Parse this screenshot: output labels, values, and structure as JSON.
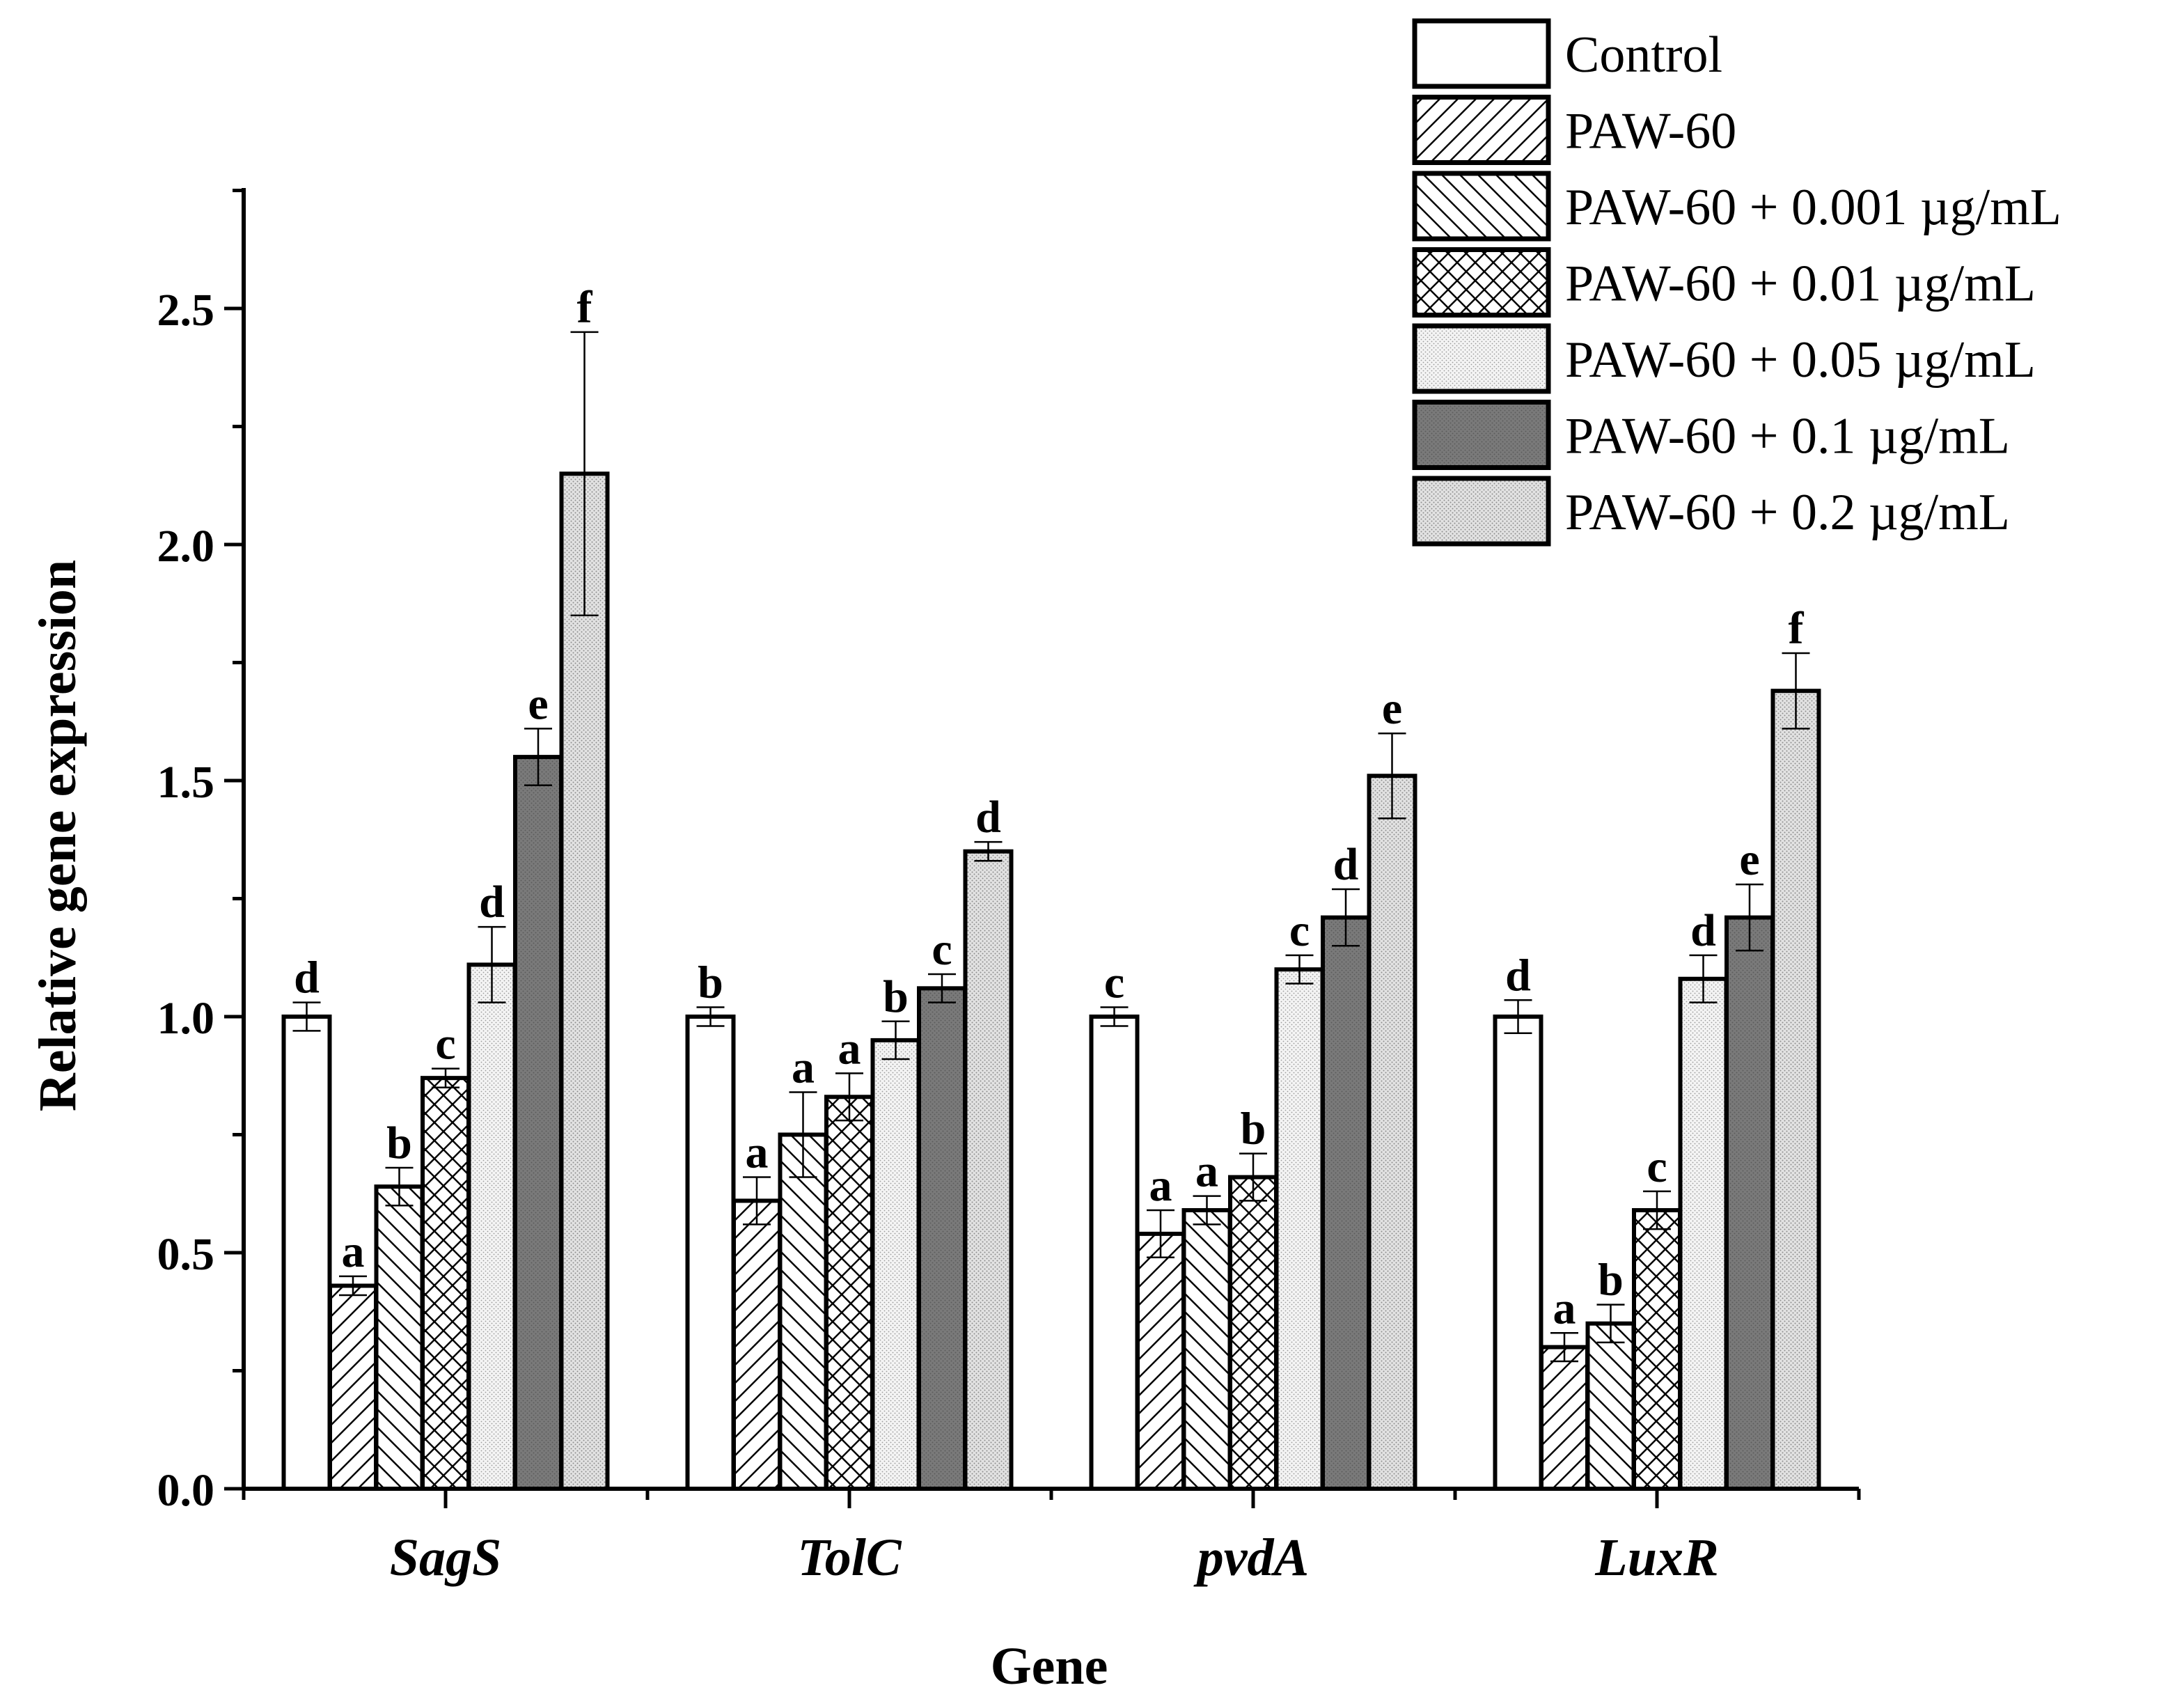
{
  "chart_data": {
    "type": "bar",
    "title": "",
    "xlabel": "Gene",
    "ylabel": "Relative gene expression",
    "ylim": [
      0,
      2.75
    ],
    "yticks": [
      0.0,
      0.5,
      1.0,
      1.5,
      2.0,
      2.5
    ],
    "ytick_labels": [
      "0.0",
      "0.5",
      "1.0",
      "1.5",
      "2.0",
      "2.5"
    ],
    "categories": [
      "SagS",
      "TolC",
      "pvdA",
      "LuxR"
    ],
    "grid": false,
    "legend_position": "top-right",
    "series": [
      {
        "name": "Control",
        "pattern": "none",
        "values": [
          1.0,
          1.0,
          1.0,
          1.0
        ],
        "errors": [
          0.03,
          0.02,
          0.02,
          0.035
        ],
        "letters": [
          "d",
          "b",
          "c",
          "d"
        ]
      },
      {
        "name": "PAW-60",
        "pattern": "diag-forward",
        "values": [
          0.43,
          0.61,
          0.54,
          0.3
        ],
        "errors": [
          0.02,
          0.05,
          0.05,
          0.03
        ],
        "letters": [
          "a",
          "a",
          "a",
          "a"
        ]
      },
      {
        "name": "PAW-60 + 0.001 µg/mL",
        "pattern": "diag-back",
        "values": [
          0.64,
          0.75,
          0.59,
          0.35
        ],
        "errors": [
          0.04,
          0.09,
          0.03,
          0.04
        ],
        "letters": [
          "b",
          "a",
          "a",
          "b"
        ]
      },
      {
        "name": "PAW-60 + 0.01 µg/mL",
        "pattern": "crosshatch",
        "values": [
          0.87,
          0.83,
          0.66,
          0.59
        ],
        "errors": [
          0.02,
          0.05,
          0.05,
          0.04
        ],
        "letters": [
          "c",
          "a",
          "b",
          "c"
        ]
      },
      {
        "name": "PAW-60 + 0.05 µg/mL",
        "pattern": "dots-light",
        "values": [
          1.11,
          0.95,
          1.1,
          1.08
        ],
        "errors": [
          0.08,
          0.04,
          0.03,
          0.05
        ],
        "letters": [
          "d",
          "b",
          "c",
          "d"
        ]
      },
      {
        "name": "PAW-60 + 0.1 µg/mL",
        "pattern": "dark",
        "values": [
          1.55,
          1.06,
          1.21,
          1.21
        ],
        "errors": [
          0.06,
          0.03,
          0.06,
          0.07
        ],
        "letters": [
          "e",
          "c",
          "d",
          "e"
        ]
      },
      {
        "name": "PAW-60 + 0.2 µg/mL",
        "pattern": "dots-medium",
        "values": [
          2.15,
          1.35,
          1.51,
          1.69
        ],
        "errors": [
          0.3,
          0.02,
          0.09,
          0.08
        ],
        "letters": [
          "f",
          "d",
          "e",
          "f"
        ]
      }
    ]
  }
}
